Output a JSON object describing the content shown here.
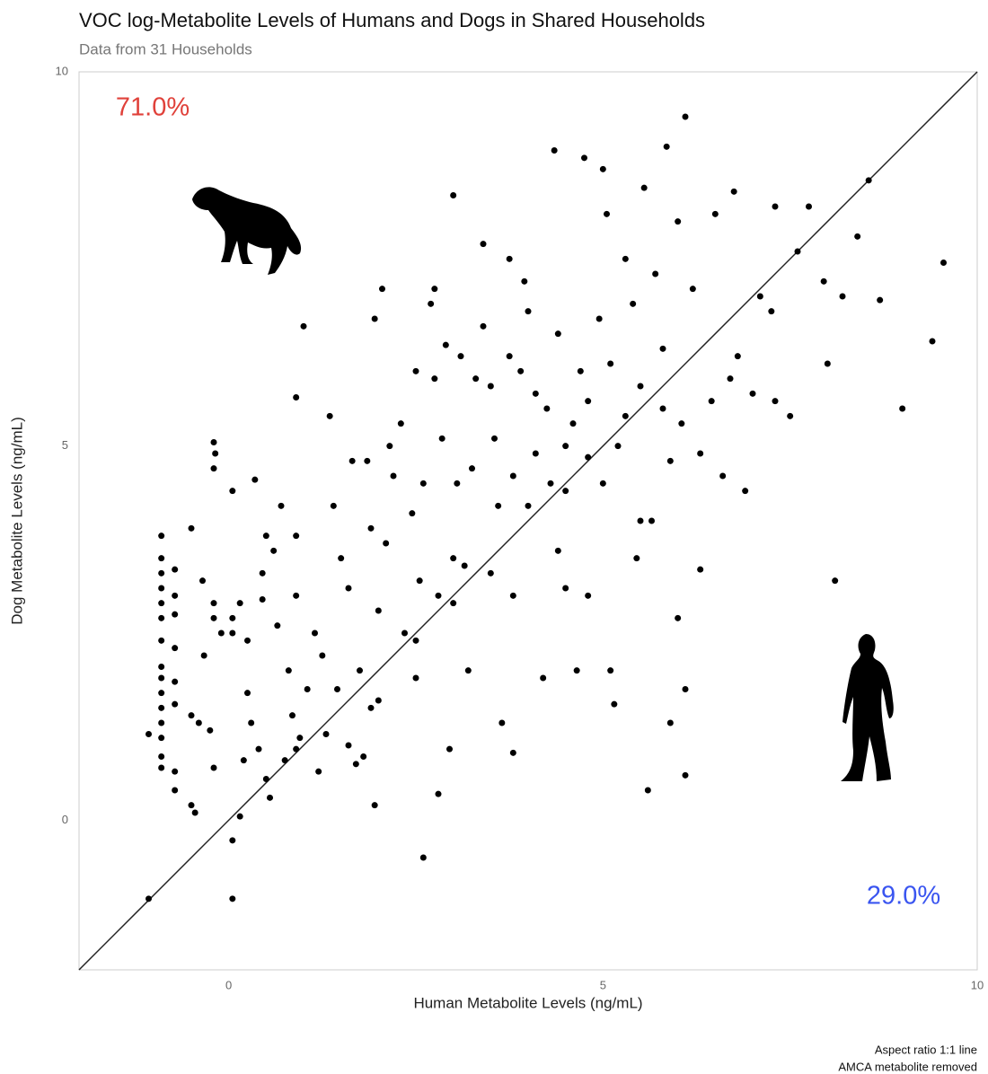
{
  "chart_data": {
    "type": "scatter",
    "title": "VOC log-Metabolite Levels of Humans and Dogs in Shared Households",
    "subtitle": "Data from 31 Households",
    "x_label": "Human Metabolite Levels (ng/mL)",
    "y_label": "Dog Metabolite Levels (ng/mL)",
    "xlim": [
      -2,
      10
    ],
    "ylim": [
      -2,
      10
    ],
    "xticks": [
      0,
      5,
      10
    ],
    "yticks": [
      0,
      5,
      10
    ],
    "color": "#000000",
    "identity_line": true,
    "annotations": [
      {
        "text": "71.0%",
        "color": "#e0413a"
      },
      {
        "text": "29.0%",
        "color": "#3a55f0"
      }
    ],
    "caption": [
      "Aspect ratio 1:1 line",
      "AMCA metabolite removed"
    ],
    "x": [
      -1.07,
      -1.07,
      -0.9,
      -0.9,
      -0.9,
      -0.9,
      -0.9,
      -0.9,
      -0.9,
      -0.9,
      -0.9,
      -0.9,
      -0.9,
      -0.9,
      -0.9,
      -0.9,
      -0.9,
      -0.72,
      -0.72,
      -0.72,
      -0.72,
      -0.72,
      -0.72,
      -0.72,
      -0.72,
      -0.5,
      -0.5,
      -0.5,
      -0.45,
      -0.4,
      -0.35,
      -0.33,
      -0.25,
      -0.2,
      -0.2,
      -0.2,
      -0.2,
      -0.2,
      -0.18,
      -0.1,
      0.05,
      0.05,
      0.05,
      0.05,
      0.05,
      0.15,
      0.15,
      0.2,
      0.25,
      0.25,
      0.3,
      0.35,
      0.4,
      0.45,
      0.45,
      0.5,
      0.5,
      0.55,
      0.6,
      0.65,
      0.7,
      0.75,
      0.8,
      0.85,
      0.9,
      0.9,
      0.9,
      0.9,
      0.95,
      1.0,
      1.05,
      1.15,
      1.2,
      1.25,
      1.3,
      1.35,
      1.4,
      1.45,
      1.5,
      1.6,
      1.6,
      1.65,
      1.7,
      1.75,
      1.85,
      1.9,
      1.9,
      1.95,
      1.95,
      2.0,
      2.05,
      2.1,
      2.15,
      2.2,
      2.3,
      2.35,
      2.45,
      2.5,
      2.5,
      2.55,
      2.6,
      2.7,
      2.75,
      2.75,
      2.8,
      2.8,
      2.85,
      2.9,
      2.95,
      3.0,
      3.0,
      3.05,
      3.1,
      3.15,
      3.25,
      3.3,
      3.4,
      3.4,
      3.5,
      3.55,
      3.6,
      3.65,
      3.75,
      3.75,
      3.8,
      3.8,
      3.9,
      3.95,
      4.0,
      4.1,
      4.1,
      4.2,
      4.25,
      4.35,
      4.4,
      4.5,
      4.5,
      4.6,
      4.65,
      4.7,
      4.75,
      4.8,
      4.8,
      4.95,
      5.0,
      5.05,
      5.1,
      5.15,
      5.2,
      5.3,
      5.4,
      5.45,
      5.5,
      5.55,
      5.6,
      5.65,
      5.7,
      5.8,
      5.85,
      5.9,
      6.0,
      6.05,
      6.1,
      6.1,
      6.2,
      6.3,
      6.45,
      6.5,
      6.6,
      6.75,
      6.8,
      6.9,
      7.0,
      7.1,
      7.25,
      7.3,
      7.3,
      7.5,
      7.6,
      7.75,
      7.95,
      8.0,
      8.1,
      8.2,
      8.4,
      8.55,
      8.7,
      9.0,
      9.4,
      9.55,
      3.5,
      4.0,
      4.5,
      5.0,
      5.5,
      3.0,
      2.5,
      4.4,
      4.8,
      6.0,
      6.1,
      5.9,
      5.1,
      2.0,
      1.8,
      3.2,
      2.6,
      3.8,
      4.3,
      5.3,
      6.3,
      6.7,
      5.8
    ],
    "values": [
      1.15,
      -1.05,
      3.8,
      3.5,
      3.3,
      3.1,
      2.9,
      2.7,
      2.4,
      2.05,
      1.9,
      1.7,
      1.5,
      1.3,
      1.1,
      0.85,
      0.7,
      3.35,
      3.0,
      2.75,
      2.3,
      1.85,
      1.55,
      0.65,
      0.4,
      3.9,
      1.4,
      0.2,
      0.1,
      1.3,
      3.2,
      2.2,
      1.2,
      2.9,
      2.7,
      0.7,
      5.05,
      4.7,
      4.9,
      2.5,
      2.5,
      2.7,
      4.4,
      -0.27,
      -1.05,
      0.05,
      2.9,
      0.8,
      1.7,
      2.4,
      1.3,
      4.55,
      0.95,
      3.3,
      2.95,
      3.8,
      0.55,
      0.3,
      3.6,
      2.6,
      4.2,
      0.8,
      2.0,
      1.4,
      3.0,
      3.8,
      0.95,
      5.65,
      1.1,
      6.6,
      1.75,
      2.5,
      0.65,
      2.2,
      1.15,
      5.4,
      4.2,
      1.75,
      3.5,
      3.1,
      1.0,
      4.8,
      0.75,
      2.0,
      4.8,
      1.5,
      3.9,
      6.7,
      0.2,
      2.8,
      7.1,
      3.7,
      5.0,
      4.6,
      5.3,
      2.5,
      4.1,
      6.0,
      1.9,
      3.2,
      -0.5,
      6.9,
      7.1,
      5.9,
      3.0,
      0.35,
      5.1,
      6.35,
      0.95,
      2.9,
      8.35,
      4.5,
      6.2,
      3.4,
      4.7,
      5.9,
      7.7,
      6.6,
      3.3,
      5.1,
      4.2,
      1.3,
      7.5,
      6.2,
      0.9,
      3.0,
      6.0,
      7.2,
      6.8,
      4.9,
      5.7,
      1.9,
      5.5,
      8.95,
      6.5,
      4.4,
      3.1,
      5.3,
      2.0,
      6.0,
      8.85,
      4.85,
      5.6,
      6.7,
      8.7,
      8.1,
      6.1,
      1.55,
      5.0,
      7.5,
      6.9,
      3.5,
      5.8,
      8.45,
      0.4,
      4.0,
      7.3,
      6.3,
      9.0,
      4.8,
      8.0,
      5.3,
      9.4,
      0.6,
      7.1,
      3.35,
      5.6,
      8.1,
      4.6,
      8.4,
      6.2,
      4.4,
      5.7,
      7.0,
      6.8,
      8.2,
      5.6,
      5.4,
      7.6,
      8.2,
      7.2,
      6.1,
      3.2,
      7.0,
      7.8,
      8.55,
      6.95,
      5.5,
      6.4,
      7.45,
      5.8,
      4.2,
      5.0,
      4.5,
      4.0,
      3.5,
      2.4,
      3.6,
      3.0,
      2.7,
      1.75,
      1.3,
      2.0,
      1.6,
      0.85,
      2.0,
      4.5,
      4.6,
      4.5,
      5.4,
      4.9,
      5.9,
      5.5
    ]
  }
}
